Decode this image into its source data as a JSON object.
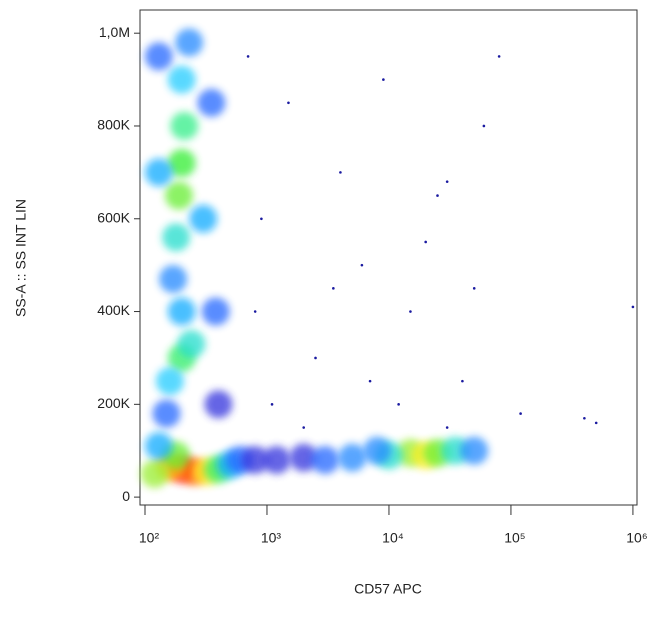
{
  "chart_data": {
    "type": "scatter",
    "xlabel": "CD57 APC",
    "ylabel": "SS-A :: SS INT LIN",
    "xscale": "log",
    "xlim": [
      91,
      1080000
    ],
    "ylim": [
      -17000,
      1050000
    ],
    "xticks": [
      {
        "value": 100,
        "label": "10²"
      },
      {
        "value": 1000,
        "label": "10³"
      },
      {
        "value": 10000,
        "label": "10⁴"
      },
      {
        "value": 100000,
        "label": "10⁵"
      },
      {
        "value": 1000000,
        "label": "10⁶"
      }
    ],
    "yticks": [
      0,
      {
        "value": 200000,
        "label": "200K"
      },
      {
        "value": 400000,
        "label": "400K"
      },
      {
        "value": 600000,
        "label": "600K"
      },
      {
        "value": 800000,
        "label": "800K"
      },
      {
        "value": 1000000,
        "label": "1,0M"
      }
    ],
    "x": [
      200,
      190,
      210,
      180,
      200,
      230,
      170,
      200,
      240,
      160,
      200,
      300,
      130,
      350,
      380,
      130,
      150,
      400,
      200,
      250,
      160,
      320,
      120,
      400,
      180,
      500,
      600,
      130,
      800,
      1200,
      2000,
      3000,
      5000,
      15000,
      20000,
      25000,
      10000,
      35000,
      50000,
      8000,
      700,
      900,
      1500,
      2500,
      4000,
      6000,
      9000,
      15000,
      25000,
      30000,
      40000,
      60000,
      1100,
      3500,
      12000,
      20000,
      50000,
      800,
      2000,
      7000,
      30000,
      120000,
      400000,
      1000000,
      80000,
      500000
    ],
    "y": [
      720000,
      650000,
      800000,
      560000,
      900000,
      980000,
      470000,
      300000,
      330000,
      250000,
      400000,
      600000,
      700000,
      850000,
      400000,
      950000,
      180000,
      200000,
      60000,
      55000,
      65000,
      55000,
      50000,
      60000,
      90000,
      70000,
      80000,
      110000,
      80000,
      80000,
      85000,
      80000,
      85000,
      95000,
      90000,
      95000,
      90000,
      100000,
      100000,
      100000,
      950000,
      600000,
      850000,
      300000,
      700000,
      500000,
      900000,
      400000,
      650000,
      680000,
      250000,
      800000,
      200000,
      450000,
      200000,
      550000,
      450000,
      400000,
      150000,
      250000,
      150000,
      180000,
      170000,
      410000,
      950000,
      160000
    ],
    "colors": [
      "#33ee33",
      "#66ee33",
      "#33ee88",
      "#22ddcc",
      "#22ccff",
      "#2288ff",
      "#2288ff",
      "#33ee66",
      "#22ddcc",
      "#22ccff",
      "#11aaff",
      "#11aaff",
      "#11aaff",
      "#2266ff",
      "#2266ff",
      "#2266ff",
      "#2266ff",
      "#3333dd",
      "#ff2222",
      "#ff6600",
      "#ffbb00",
      "#ffee22",
      "#99ee33",
      "#33ee66",
      "#66ee33",
      "#11aaff",
      "#2266ff",
      "#11aaff",
      "#3333dd",
      "#3333dd",
      "#3333dd",
      "#2266ff",
      "#2288ff",
      "#99ee33",
      "#ffee22",
      "#66ee33",
      "#22ddcc",
      "#22ddcc",
      "#2288ff",
      "#2288ff",
      "#1a1aa0",
      "#1a1aa0",
      "#1a1aa0",
      "#1a1aa0",
      "#1a1aa0",
      "#1a1aa0",
      "#1a1aa0",
      "#1a1aa0",
      "#1a1aa0",
      "#1a1aa0",
      "#1a1aa0",
      "#1a1aa0",
      "#1a1aa0",
      "#1a1aa0",
      "#1a1aa0",
      "#1a1aa0",
      "#1a1aa0",
      "#1a1aa0",
      "#1a1aa0",
      "#1a1aa0",
      "#1a1aa0",
      "#1a1aa0",
      "#1a1aa0",
      "#1a1aa0",
      "#1a1aa0",
      "#1a1aa0"
    ]
  }
}
